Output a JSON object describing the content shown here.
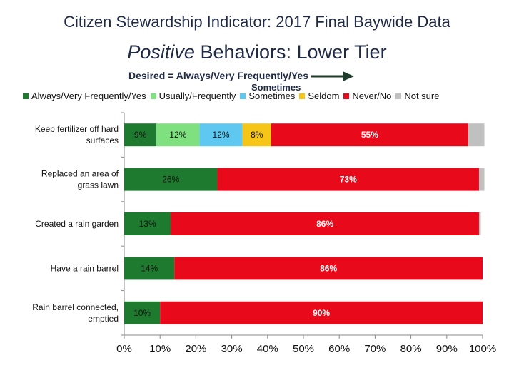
{
  "header": {
    "title": "Citizen Stewardship Indicator: 2017 Final Baywide Data",
    "subtitle_em": "Positive",
    "subtitle_rest": " Behaviors: Lower Tier",
    "desired_note": "Desired = Always/Very Frequently/Yes",
    "sometimes_note": "Sometimes"
  },
  "legend": {
    "items": [
      {
        "label": "Always/Very Frequently/Yes",
        "color": "#1e7a2e"
      },
      {
        "label": "Usually/Frequently",
        "color": "#7ee07e"
      },
      {
        "label": "Sometimes",
        "color": "#5ec8f0"
      },
      {
        "label": "Seldom",
        "color": "#f5c518"
      },
      {
        "label": "Never/No",
        "color": "#e8091b"
      },
      {
        "label": "Not sure",
        "color": "#c0c0c0"
      }
    ]
  },
  "chart_data": {
    "type": "bar",
    "orientation": "horizontal",
    "stacked": true,
    "title": "Positive Behaviors: Lower Tier",
    "xlim": [
      0,
      100
    ],
    "x_ticks": [
      "0%",
      "10%",
      "20%",
      "30%",
      "40%",
      "50%",
      "60%",
      "70%",
      "80%",
      "90%",
      "100%"
    ],
    "categories": [
      "Keep fertilizer off hard surfaces",
      "Replaced an area of grass lawn",
      "Created a rain garden",
      "Have a rain barrel",
      "Rain barrel connected, emptied"
    ],
    "series": [
      {
        "name": "Always/Very Frequently/Yes",
        "color": "#1e7a2e",
        "values": [
          9,
          26,
          13,
          14,
          10
        ]
      },
      {
        "name": "Usually/Frequently",
        "color": "#7ee07e",
        "values": [
          12,
          0,
          0,
          0,
          0
        ]
      },
      {
        "name": "Sometimes",
        "color": "#5ec8f0",
        "values": [
          12,
          0,
          0,
          0,
          0
        ]
      },
      {
        "name": "Seldom",
        "color": "#f5c518",
        "values": [
          8,
          0,
          0,
          0,
          0
        ]
      },
      {
        "name": "Never/No",
        "color": "#e8091b",
        "values": [
          55,
          73,
          86,
          86,
          90
        ]
      },
      {
        "name": "Not sure",
        "color": "#c0c0c0",
        "values": [
          4.5,
          1.5,
          0.5,
          0,
          0
        ]
      }
    ],
    "data_labels": [
      [
        "9%",
        "12%",
        "12%",
        "8%",
        "55%",
        ""
      ],
      [
        "26%",
        "",
        "",
        "",
        "73%",
        ""
      ],
      [
        "13%",
        "",
        "",
        "",
        "86%",
        ""
      ],
      [
        "14%",
        "",
        "",
        "",
        "86%",
        ""
      ],
      [
        "10%",
        "",
        "",
        "",
        "90%",
        ""
      ]
    ],
    "category_label_lines": [
      [
        "Keep fertilizer off hard",
        "surfaces"
      ],
      [
        "Replaced an area of",
        "grass lawn"
      ],
      [
        "Created a rain garden"
      ],
      [
        "Have a rain barrel"
      ],
      [
        "Rain barrel connected,",
        "emptied"
      ]
    ]
  }
}
